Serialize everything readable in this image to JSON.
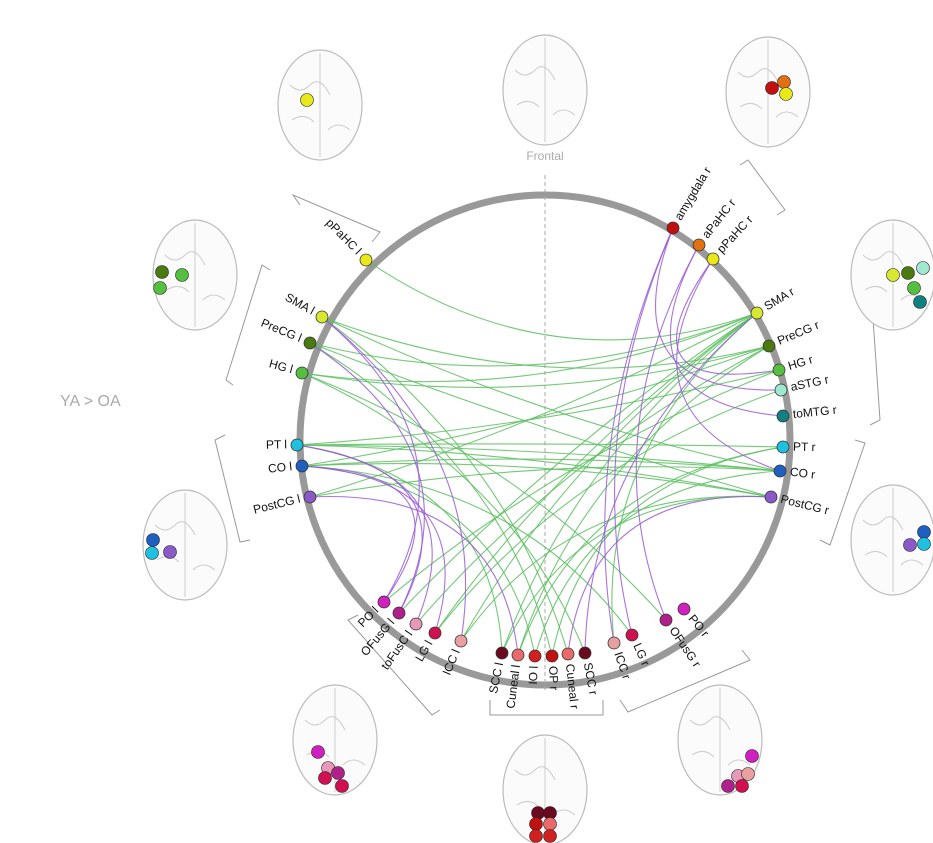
{
  "title": "YA > OA",
  "axis_label": "Frontal",
  "nodes": [
    {
      "label": "pPaHC l",
      "color": "#e8e81a"
    },
    {
      "label": "SMA l",
      "color": "#d8e830"
    },
    {
      "label": "PreCG l",
      "color": "#4a7a10"
    },
    {
      "label": "HG l",
      "color": "#55c040"
    },
    {
      "label": "PT l",
      "color": "#20c0e0"
    },
    {
      "label": "CO l",
      "color": "#1e5fc0"
    },
    {
      "label": "PostCG l",
      "color": "#8a5ac8"
    },
    {
      "label": "PO l",
      "color": "#d020c0"
    },
    {
      "label": "OFusG l",
      "color": "#b0208a"
    },
    {
      "label": "toFusC l",
      "color": "#e898b8"
    },
    {
      "label": "LG l",
      "color": "#d01050"
    },
    {
      "label": "ICC l",
      "color": "#e8a0a0"
    },
    {
      "label": "SCC l",
      "color": "#6a0a20"
    },
    {
      "label": "Cuneal l",
      "color": "#e86a6a"
    },
    {
      "label": "IO l",
      "color": "#d02020"
    },
    {
      "label": "OP r",
      "color": "#c01010"
    },
    {
      "label": "Cuneal r",
      "color": "#e86a6a"
    },
    {
      "label": "SCC r",
      "color": "#6a0a20"
    },
    {
      "label": "ICC r",
      "color": "#e8a0a0"
    },
    {
      "label": "LG r",
      "color": "#d01050"
    },
    {
      "label": "OFusG r",
      "color": "#b0208a"
    },
    {
      "label": "PO r",
      "color": "#d020c0"
    },
    {
      "label": "PostCG r",
      "color": "#8a5ac8"
    },
    {
      "label": "CO r",
      "color": "#1e5fc0"
    },
    {
      "label": "PT r",
      "color": "#20c0e0"
    },
    {
      "label": "toMTG r",
      "color": "#108080"
    },
    {
      "label": "aSTG r",
      "color": "#a0e8d0"
    },
    {
      "label": "HG r",
      "color": "#55c040"
    },
    {
      "label": "PreCG r",
      "color": "#4a7a10"
    },
    {
      "label": "SMA r",
      "color": "#d8e830"
    },
    {
      "label": "pPaHC r",
      "color": "#e8e81a"
    },
    {
      "label": "aPaHC r",
      "color": "#e07010"
    },
    {
      "label": "amygdala r",
      "color": "#c01010"
    }
  ]
}
